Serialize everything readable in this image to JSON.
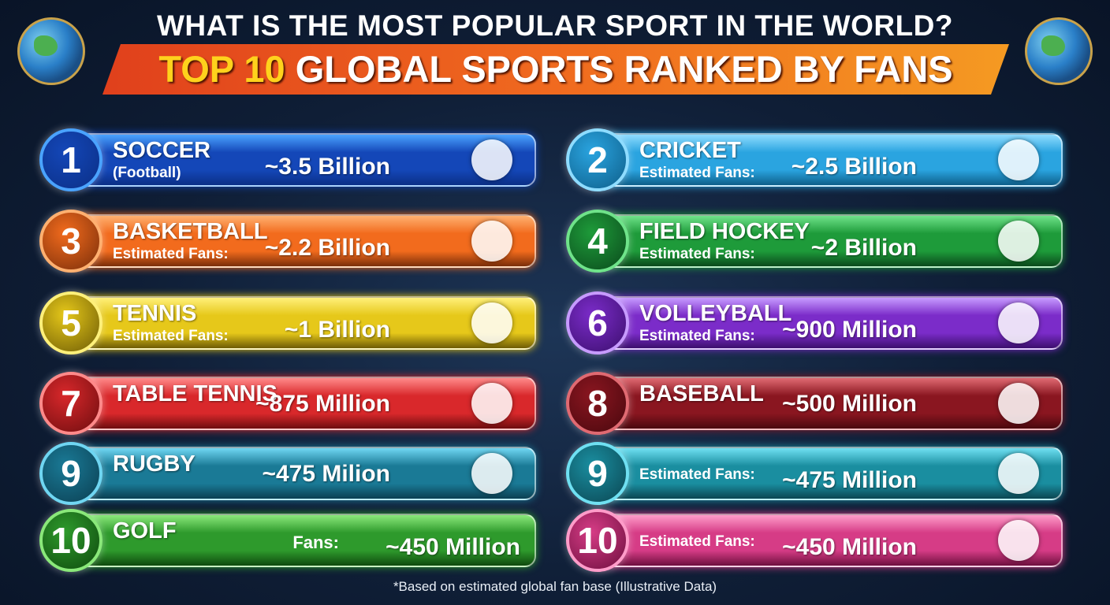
{
  "header": {
    "title": "WHAT IS THE MOST POPULAR SPORT IN THE WORLD?",
    "banner_highlight": "TOP 10",
    "banner_text": "GLOBAL SPORTS RANKED BY FANS"
  },
  "cards": [
    {
      "rank": "1",
      "name": "SOCCER",
      "label": "(Football)",
      "fans": "~3.5 Billion"
    },
    {
      "rank": "2",
      "name": "CRICKET",
      "label": "Estimated Fans:",
      "fans": "~2.5 Billion"
    },
    {
      "rank": "3",
      "name": "BASKETBALL",
      "label": "Estimated Fans:",
      "fans": "~2.2 Billion"
    },
    {
      "rank": "4",
      "name": "FIELD HOCKEY",
      "label": "Estimated Fans:",
      "fans": "~2 Billion"
    },
    {
      "rank": "5",
      "name": "TENNIS",
      "label": "Estimated Fans:",
      "fans": "~1 Billion"
    },
    {
      "rank": "6",
      "name": "VOLLEYBALL",
      "label": "Estimated Fans:",
      "fans": "~900 Million"
    },
    {
      "rank": "7",
      "name": "TABLE TENNIS",
      "fans": "~875 Million"
    },
    {
      "rank": "8",
      "name": "BASEBALL",
      "fans": "~500 Million"
    },
    {
      "rank": "9",
      "name": "RUGBY",
      "fans": "~475 Milion"
    },
    {
      "rank": "9",
      "label": "Estimated Fans:",
      "fans": "~475 Million"
    },
    {
      "rank": "10",
      "name": "GOLF",
      "inline_label": "Fans:",
      "fans": "~450 Million"
    },
    {
      "rank": "10",
      "label": "Estimated Fans:",
      "fans": "~450 Million"
    }
  ],
  "footnote": "*Based on estimated global fan base (Illustrative Data)"
}
